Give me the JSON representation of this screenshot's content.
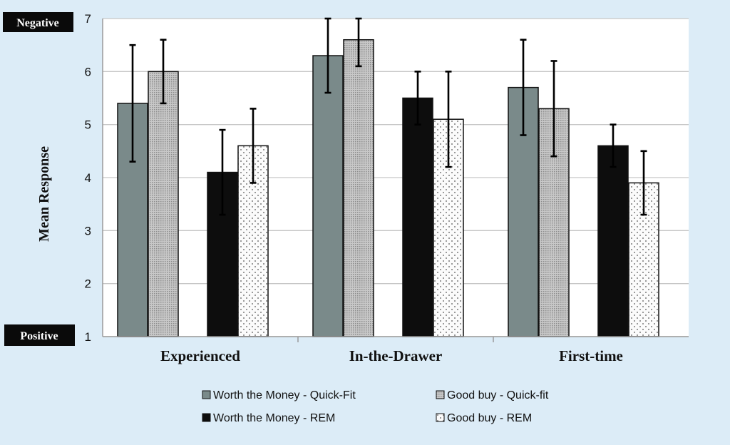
{
  "chart_data": {
    "type": "bar",
    "ylabel": "Mean Response",
    "ylim": [
      1,
      7
    ],
    "yticks": [
      1,
      2,
      3,
      4,
      5,
      6,
      7
    ],
    "grid": true,
    "legend_position": "bottom",
    "axis_tags": {
      "top": "Negative",
      "bottom": "Positive"
    },
    "categories": [
      "Experienced",
      "In-the-Drawer",
      "First-time"
    ],
    "series": [
      {
        "name": "Worth the Money - Quick-Fit",
        "values": [
          5.4,
          6.3,
          5.7
        ],
        "error_low": [
          4.3,
          5.6,
          4.8
        ],
        "error_high": [
          6.5,
          7.0,
          6.6
        ],
        "color": "#7a8a8a",
        "pattern": "solid"
      },
      {
        "name": "Good buy - Quick-fit",
        "values": [
          6.0,
          6.6,
          5.3
        ],
        "error_low": [
          5.4,
          6.1,
          4.4
        ],
        "error_high": [
          6.6,
          7.0,
          6.2
        ],
        "color": "#b4b4b4",
        "pattern": "fine-dots"
      },
      {
        "name": "Worth the Money - REM",
        "values": [
          4.1,
          5.5,
          4.6
        ],
        "error_low": [
          3.3,
          5.0,
          4.2
        ],
        "error_high": [
          4.9,
          6.0,
          5.0
        ],
        "color": "#0d0d0d",
        "pattern": "solid"
      },
      {
        "name": "Good buy - REM",
        "values": [
          4.6,
          5.1,
          3.9
        ],
        "error_low": [
          3.9,
          4.2,
          3.3
        ],
        "error_high": [
          5.3,
          6.0,
          4.5
        ],
        "color": "#f2f2f2",
        "pattern": "sparse-dots"
      }
    ]
  }
}
